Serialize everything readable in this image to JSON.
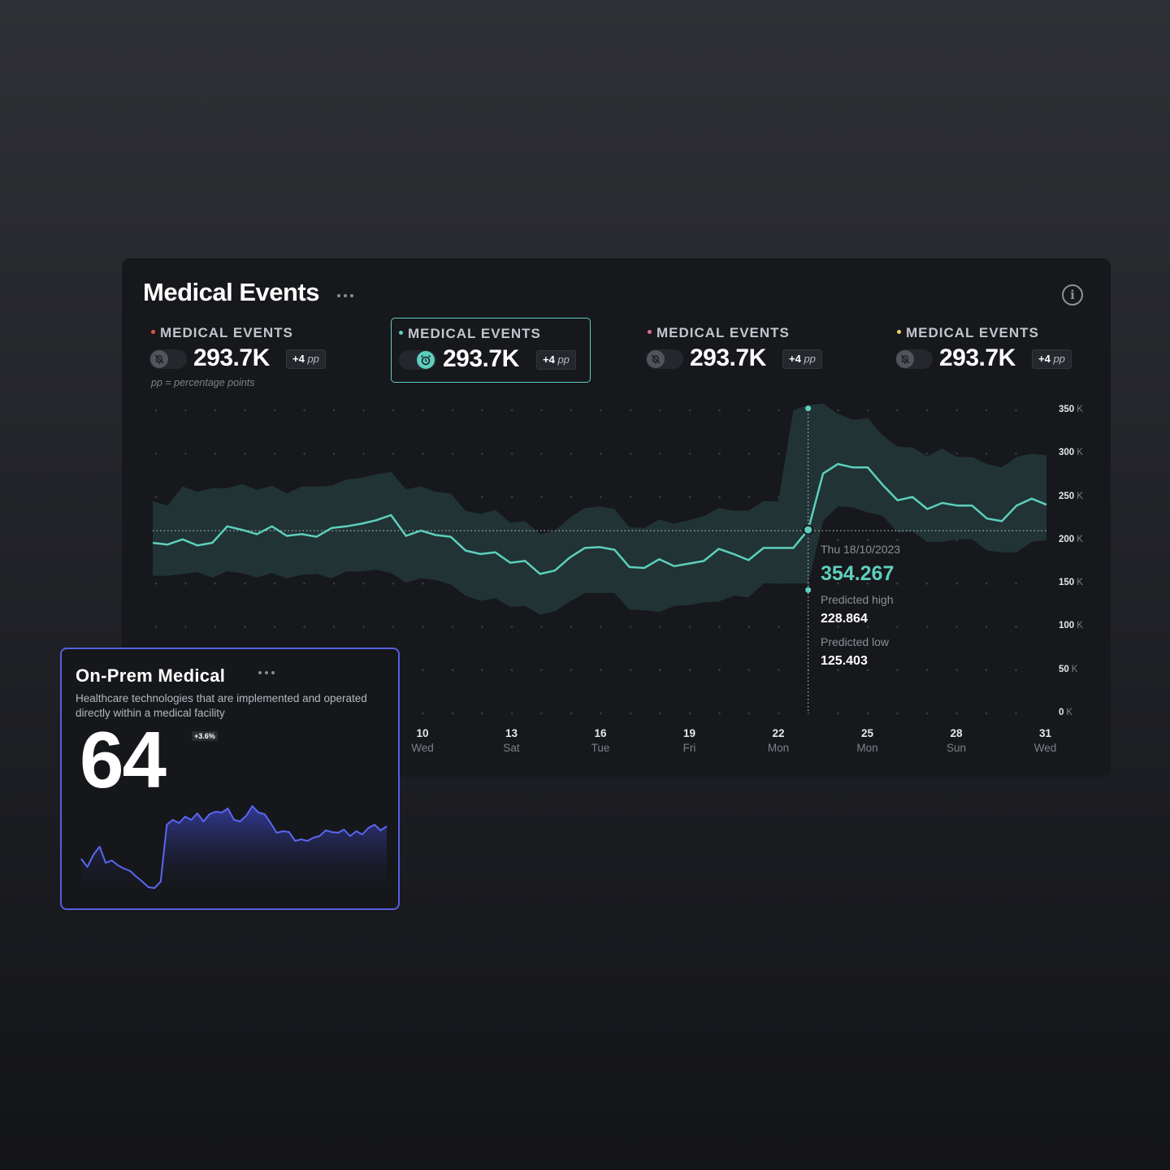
{
  "panel": {
    "title": "Medical Events",
    "footnote": "pp = percentage points"
  },
  "kpis": [
    {
      "label": "MEDICAL EVENTS",
      "value": "293.7K",
      "delta": "+4",
      "unit": "pp",
      "dot_color": "#e5534b",
      "alarm_on": false
    },
    {
      "label": "MEDICAL EVENTS",
      "value": "293.7K",
      "delta": "+4",
      "unit": "pp",
      "dot_color": "#5dcfbd",
      "alarm_on": true
    },
    {
      "label": "MEDICAL EVENTS",
      "value": "293.7K",
      "delta": "+4",
      "unit": "pp",
      "dot_color": "#e06a8f",
      "alarm_on": false
    },
    {
      "label": "MEDICAL EVENTS",
      "value": "293.7K",
      "delta": "+4",
      "unit": "pp",
      "dot_color": "#e9d35b",
      "alarm_on": false
    }
  ],
  "chart_data": {
    "type": "line",
    "y_ticks": [
      {
        "value": "350",
        "unit": "K"
      },
      {
        "value": "300",
        "unit": "K"
      },
      {
        "value": "250",
        "unit": "K"
      },
      {
        "value": "200",
        "unit": "K"
      },
      {
        "value": "150",
        "unit": "K"
      },
      {
        "value": "100",
        "unit": "K"
      },
      {
        "value": "50",
        "unit": "K"
      },
      {
        "value": "0",
        "unit": "K"
      }
    ],
    "ylim": [
      0,
      350
    ],
    "x_ticks": [
      {
        "day": "10",
        "weekday": "Wed"
      },
      {
        "day": "13",
        "weekday": "Sat"
      },
      {
        "day": "16",
        "weekday": "Tue"
      },
      {
        "day": "19",
        "weekday": "Fri"
      },
      {
        "day": "22",
        "weekday": "Mon"
      },
      {
        "day": "25",
        "weekday": "Mon"
      },
      {
        "day": "28",
        "weekday": "Sun"
      },
      {
        "day": "31",
        "weekday": "Wed"
      }
    ],
    "reference_value": 211,
    "series": [
      {
        "values": [
          197,
          195,
          201,
          194,
          197,
          216,
          212,
          207,
          216,
          205,
          207,
          204,
          214,
          216,
          219,
          223,
          229,
          205,
          211,
          206,
          204,
          188,
          184,
          186,
          174,
          176,
          161,
          165,
          180,
          191,
          192,
          189,
          169,
          168,
          178,
          170,
          173,
          176,
          190,
          184,
          177,
          191,
          191,
          191,
          212,
          277,
          288,
          284,
          284,
          264,
          246,
          250,
          236,
          243,
          240,
          240,
          225,
          222,
          240,
          248,
          241
        ]
      }
    ],
    "band_high": [
      245,
      240,
      262,
      256,
      260,
      260,
      265,
      258,
      263,
      254,
      262,
      262,
      263,
      270,
      272,
      276,
      279,
      259,
      262,
      256,
      254,
      234,
      230,
      235,
      220,
      222,
      207,
      211,
      226,
      237,
      239,
      236,
      215,
      214,
      224,
      219,
      223,
      228,
      237,
      234,
      234,
      245,
      245,
      350,
      356,
      358,
      346,
      339,
      341,
      321,
      308,
      307,
      297,
      306,
      296,
      296,
      288,
      284,
      296,
      300,
      298
    ],
    "band_low": [
      159,
      159,
      161,
      163,
      157,
      164,
      162,
      157,
      162,
      156,
      160,
      161,
      156,
      164,
      164,
      166,
      162,
      151,
      156,
      154,
      149,
      136,
      130,
      133,
      123,
      124,
      114,
      118,
      129,
      139,
      139,
      139,
      120,
      119,
      117,
      124,
      125,
      128,
      129,
      136,
      134,
      150,
      150,
      150,
      150,
      222,
      239,
      238,
      232,
      228,
      209,
      210,
      198,
      198,
      201,
      201,
      188,
      186,
      186,
      198,
      200
    ],
    "tooltip": {
      "date": "Thu 18/10/2023",
      "value": "354.267",
      "high_label": "Predicted high",
      "high_value": "228.864",
      "low_label": "Predicted low",
      "low_value": "125.403"
    }
  },
  "card": {
    "title": "On-Prem Medical",
    "description": "Healthcare technologies that are implemented and operated directly within a medical facility",
    "value": "64",
    "badge": "+3.6%",
    "sparkline": [
      40,
      30,
      45,
      55,
      35,
      38,
      32,
      28,
      25,
      18,
      12,
      5,
      4,
      12,
      82,
      88,
      84,
      92,
      88,
      96,
      86,
      95,
      98,
      97,
      102,
      88,
      86,
      93,
      105,
      97,
      95,
      84,
      72,
      74,
      73,
      62,
      64,
      62,
      66,
      68,
      75,
      73,
      72,
      76,
      68,
      74,
      70,
      78,
      82,
      75,
      80
    ]
  }
}
